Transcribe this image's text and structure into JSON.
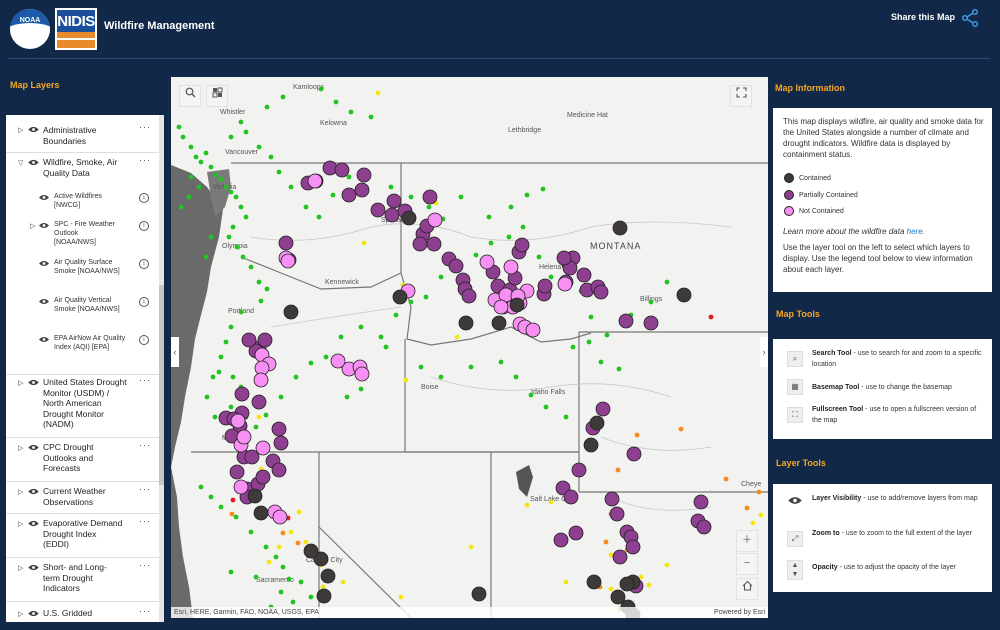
{
  "header": {
    "noaa_logo_text": "NOAA",
    "nidis_logo_text": "NIDIS",
    "title": "Wildfire Management",
    "share_label": "Share this Map"
  },
  "layers_panel": {
    "title": "Map Layers",
    "layers": [
      {
        "label": "Administrative Boundaries",
        "expanded": false
      },
      {
        "label": "Wildfire, Smoke, Air Quality Data",
        "expanded": true,
        "sublayers": [
          {
            "label": "Active Wildfires [NWCG]"
          },
          {
            "label": "SPC - Fire Weather Outlook [NOAA/NWS]"
          },
          {
            "label": "Air Quality Surface Smoke [NOAA/NWS]"
          },
          {
            "label": "Air Quality Vertical Smoke [NOAA/NWS]"
          },
          {
            "label": "EPA AirNow Air Quality Index (AQI) [EPA]"
          }
        ]
      },
      {
        "label": "United States Drought Monitor (USDM) / North American Drought Monitor (NADM)",
        "expanded": false
      },
      {
        "label": "CPC Drought Outlooks and Forecasts",
        "expanded": false
      },
      {
        "label": "Current Weather Observations",
        "expanded": false
      },
      {
        "label": "Evaporative Demand Drought Index (EDDI)",
        "expanded": false
      },
      {
        "label": "Short- and Long-term Drought Indicators",
        "expanded": false
      },
      {
        "label": "U.S. Gridded",
        "expanded": false
      }
    ]
  },
  "map": {
    "labels": {
      "kamloops": "Kamloops",
      "kelowna": "Kelowna",
      "lethbridge": "Lethbridge",
      "medicine_hat": "Medicine Hat",
      "whistler": "Whistler",
      "vancouver": "Vancouver",
      "victoria": "Victoria",
      "olympia": "Olympia",
      "spokane": "Spokane",
      "kennewick": "Kennewick",
      "helena": "Helena",
      "billings": "Billings",
      "montana": "MONTANA",
      "portland": "Portland",
      "boise": "Boise",
      "idaho_falls": "Idaho Falls",
      "medford": "Medford",
      "salt_lake_city": "Salt Lake City",
      "carson_city": "Carson City",
      "sacramento": "Sacramento",
      "cheyenne": "Cheye"
    },
    "attribution": "Esri, HERE, Garmin, FAO, NOAA, USGS, EPA",
    "powered_by": "Powered by Esri",
    "colors": {
      "contained": "#3e3a39",
      "partially_contained": "#8e3f90",
      "not_contained": "#f88ff4",
      "aqi_good": "#22c422",
      "aqi_moderate": "#f4e415",
      "aqi_usg": "#f58a1f",
      "aqi_unhealthy": "#e41a1c"
    }
  },
  "map_info": {
    "title": "Map Information",
    "description": "This map displays wildfire, air quality and smoke data for the United States alongside a number of climate and drought indicators. Wildfire data is displayed by containment status.",
    "legend": [
      {
        "label": "Contained"
      },
      {
        "label": "Partially Contained"
      },
      {
        "label": "Not Contained"
      }
    ],
    "learn_more_prefix": "Learn more about the wildfire data",
    "learn_more_link": "here.",
    "usage": "Use the layer tool on the left to select which layers to display. Use the legend tool below to view information about each layer."
  },
  "map_tools": {
    "title": "Map Tools",
    "items": [
      {
        "icon": "search-icon",
        "name": "Search Tool",
        "desc": "- use to search for and zoom to a specific location"
      },
      {
        "icon": "basemap-icon",
        "name": "Basemap Tool",
        "desc": "- use to change the basemap"
      },
      {
        "icon": "fullscreen-icon",
        "name": "Fullscreen Tool",
        "desc": "- use to open a fullscreen version of the map"
      }
    ]
  },
  "layer_tools": {
    "title": "Layer Tools",
    "items": [
      {
        "icon": "eye-icon",
        "name": "Layer Visibility",
        "desc": "- use to add/remove layers from map"
      },
      {
        "icon": "zoom-to-icon",
        "name": "Zoom to",
        "desc": "- use to zoom to the full extent of the layer"
      },
      {
        "icon": "opacity-icon",
        "name": "Opacity",
        "desc": "- use to adjust the opacity of the layer"
      }
    ]
  }
}
